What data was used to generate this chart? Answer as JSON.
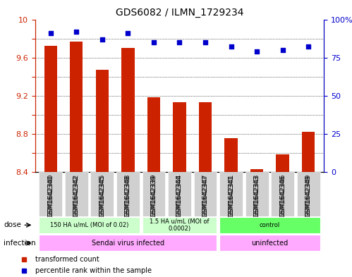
{
  "title": "GDS6082 / ILMN_1729234",
  "samples": [
    "GSM1642340",
    "GSM1642342",
    "GSM1642345",
    "GSM1642348",
    "GSM1642339",
    "GSM1642344",
    "GSM1642347",
    "GSM1642341",
    "GSM1642343",
    "GSM1642346",
    "GSM1642349"
  ],
  "bar_values": [
    9.72,
    9.77,
    9.47,
    9.7,
    9.18,
    9.13,
    9.13,
    8.75,
    8.43,
    8.58,
    8.82
  ],
  "dot_values": [
    91,
    92,
    87,
    91,
    85,
    85,
    85,
    82,
    79,
    80,
    82
  ],
  "bar_color": "#cc2200",
  "dot_color": "#0000cc",
  "ylim_left": [
    8.4,
    10.0
  ],
  "ylim_right": [
    0,
    100
  ],
  "yticks_left": [
    8.4,
    8.6,
    8.8,
    9.0,
    9.2,
    9.4,
    9.6,
    9.8,
    10.0
  ],
  "ytick_labels_left": [
    "8.4",
    "",
    "8.8",
    "",
    "9.2",
    "",
    "9.6",
    "",
    "10"
  ],
  "yticks_right": [
    0,
    25,
    50,
    75,
    100
  ],
  "ytick_labels_right": [
    "0",
    "25",
    "50",
    "75",
    "100%"
  ],
  "gridlines_at": [
    8.6,
    8.8,
    9.0,
    9.2,
    9.4,
    9.6,
    9.8
  ],
  "dose_groups": [
    {
      "label": "150 HA u/mL (MOI of 0.02)",
      "start": 0,
      "end": 4,
      "color": "#ccffcc"
    },
    {
      "label": "1.5 HA u/mL (MOI of\n0.0002)",
      "start": 4,
      "end": 7,
      "color": "#ccffcc"
    },
    {
      "label": "control",
      "start": 7,
      "end": 11,
      "color": "#66ff66"
    }
  ],
  "infection_groups": [
    {
      "label": "Sendai virus infected",
      "start": 0,
      "end": 7,
      "color": "#ffaaff"
    },
    {
      "label": "uninfected",
      "start": 7,
      "end": 11,
      "color": "#ffaaff"
    }
  ],
  "legend_items": [
    {
      "label": "transformed count",
      "color": "#cc2200",
      "marker": "s"
    },
    {
      "label": "percentile rank within the sample",
      "color": "#0000cc",
      "marker": "s"
    }
  ]
}
